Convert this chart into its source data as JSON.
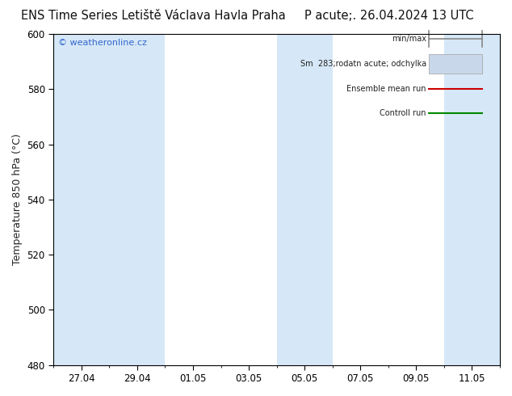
{
  "title_left": "ENS Time Series Letiště Václava Havla Praha",
  "title_right": "P acute;. 26.04.2024 13 UTC",
  "ylabel": "Temperature 850 hPa (°C)",
  "watermark": "© weatheronline.cz",
  "ylim": [
    480,
    600
  ],
  "yticks": [
    480,
    500,
    520,
    540,
    560,
    580,
    600
  ],
  "x_labels": [
    "27.04",
    "29.04",
    "01.05",
    "03.05",
    "05.05",
    "07.05",
    "09.05",
    "11.05"
  ],
  "fig_bg": "#ffffff",
  "plot_bg": "#ffffff",
  "band_color": "#d6e8f7",
  "shaded_columns": [
    0,
    1,
    4,
    7
  ],
  "legend_entries": [
    "min/max",
    "Sm  283;rodatn acute; odchylka",
    "Ensemble mean run",
    "Controll run"
  ],
  "legend_line_colors": [
    "#888888",
    "#c8d8e8",
    "#cc0000",
    "#008800"
  ],
  "title_fontsize": 10.5,
  "axis_fontsize": 9,
  "tick_fontsize": 8.5,
  "watermark_color": "#3366cc"
}
